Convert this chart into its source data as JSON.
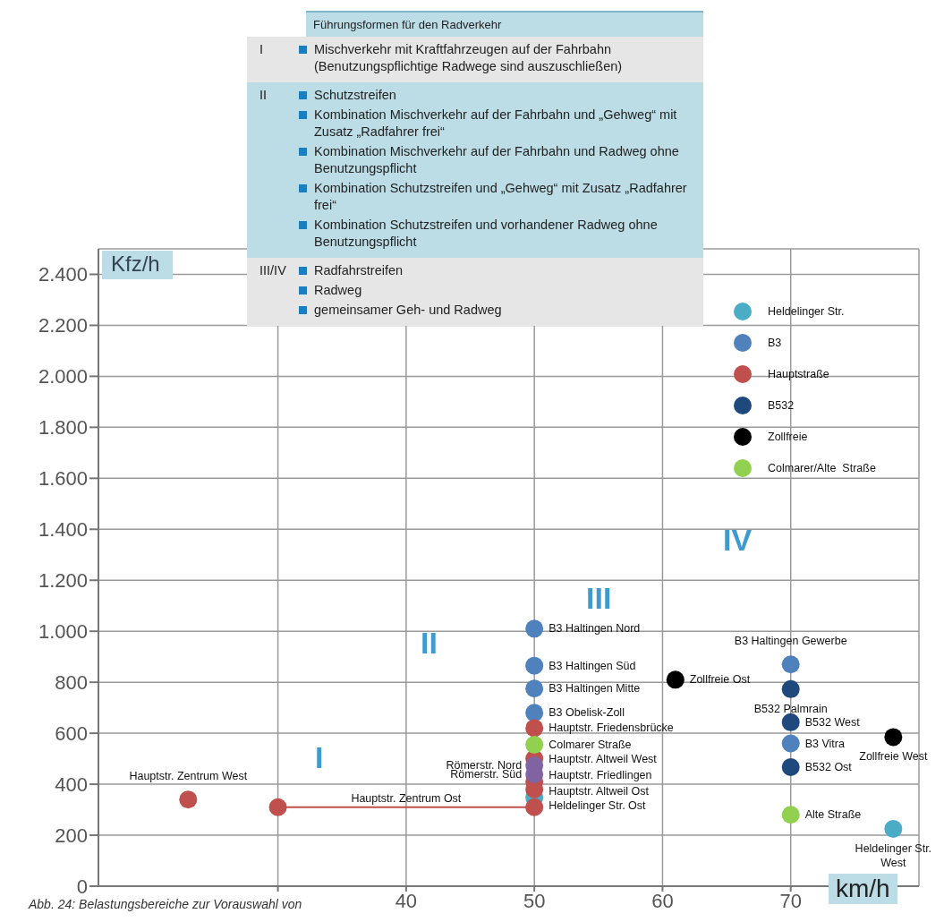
{
  "chart_data": {
    "type": "scatter",
    "xlabel": "km/h",
    "ylabel": "Kfz/h",
    "xlim": [
      16,
      80
    ],
    "ylim": [
      0,
      2500
    ],
    "xticks": [
      {
        "value": 30,
        "label": null
      },
      40,
      50,
      60,
      70
    ],
    "yticks": [
      0,
      200,
      400,
      600,
      800,
      {
        "value": 1000,
        "label": "1.000"
      },
      {
        "value": 1200,
        "label": "1.200"
      },
      {
        "value": 1400,
        "label": "1.400"
      },
      {
        "value": 1600,
        "label": "1.600"
      },
      {
        "value": 1800,
        "label": "1.800"
      },
      {
        "value": 2000,
        "label": "2.000"
      },
      {
        "value": 2200,
        "label": "2.200"
      },
      {
        "value": 2400,
        "label": "2.400"
      }
    ],
    "grid": true,
    "legend": "top right",
    "marker": "circle",
    "series": [
      {
        "name": "Heldelinger Str.",
        "color": "#4bacc6",
        "x": [
          50,
          78
        ],
        "values": [
          348,
          225
        ],
        "value_labels": [
          "Heldelinger Str. Ost",
          "Heldelinger Str. West"
        ]
      },
      {
        "name": "B3",
        "color": "#4f81bd",
        "x": [
          50,
          50,
          50,
          50,
          70,
          70
        ],
        "values": [
          1010,
          865,
          775,
          680,
          870,
          560
        ],
        "value_labels": [
          "B3 Haltingen Nord",
          "B3 Haltingen Süd",
          "B3 Haltingen Mitte",
          "B3 Obelisk-Zoll",
          "B3 Haltingen Gewerbe",
          "B3 Vitra"
        ]
      },
      {
        "name": "Hauptstraße",
        "color": "#c0504d",
        "x": [
          23,
          50,
          50,
          50,
          50
        ],
        "values": [
          340,
          620,
          500,
          410,
          380
        ],
        "value_labels": [
          "Hauptstr. Zentrum West",
          "Hauptstr. Friedensbrücke",
          "Hauptstr. Altweil West",
          "Hauptstr. Friedlingen",
          "Hauptstr. Altweil Ost"
        ]
      },
      {
        "type": "line",
        "color": "#c0504d",
        "x": [
          30,
          50
        ],
        "values": [
          310,
          310
        ]
      },
      {
        "color": "#8064a2",
        "x": [
          50,
          50
        ],
        "values": [
          474,
          439
        ],
        "value_labels": [
          "Römerstr. Nord",
          "Römerstr. Süd"
        ]
      },
      {
        "name": "B532",
        "color": "#1f497d",
        "x": [
          70,
          70,
          70
        ],
        "values": [
          773,
          643,
          467
        ],
        "value_labels": [
          "B532 Palmrain",
          "B532 West",
          "B532 Ost"
        ]
      },
      {
        "name": "Zollfreie",
        "color": "#000000",
        "x": [
          61,
          78
        ],
        "values": [
          810,
          585
        ],
        "value_labels": [
          "Zollfreie Ost",
          "Zollfreie West"
        ]
      },
      {
        "name": "Colmarer/Alte  Straße",
        "color": "#92d050",
        "x": [
          50,
          70
        ],
        "values": [
          555,
          280
        ],
        "value_labels": [
          "Colmarer Straße",
          "Alte Straße"
        ]
      }
    ],
    "annotations": [
      "Führungsformen für den Radverkehr",
      "I",
      "Mischverkehr mit Kraftfahrzeugen auf der Fahrbahn (Benutzungspflichtige Radwege sind auszuschließen)",
      "II",
      "Schutzstreifen",
      "Kombination Mischverkehr auf der Fahrbahn und „Gehweg“ mit Zusatz „Radfahrer frei“",
      "Kombination Mischverkehr auf der Fahrbahn und Radweg ohne Benutzungspflicht",
      "Kombination Schutzstreifen und „Gehweg“ mit Zusatz „Radfahrer frei“",
      "Kombination Schutzstreifen und vorhandener Radweg ohne Benutzungspflicht",
      "III/IV",
      "Radfahrstreifen",
      "Radweg",
      "gemeinsamer Geh- und Radweg",
      "Abb. 24: Belastungsbereiche zur Vorauswahl von",
      "I",
      "II",
      "III",
      "IV",
      {
        "text": "Hauptstr. Zentrum Ost",
        "x": 40,
        "y": 310
      }
    ]
  }
}
